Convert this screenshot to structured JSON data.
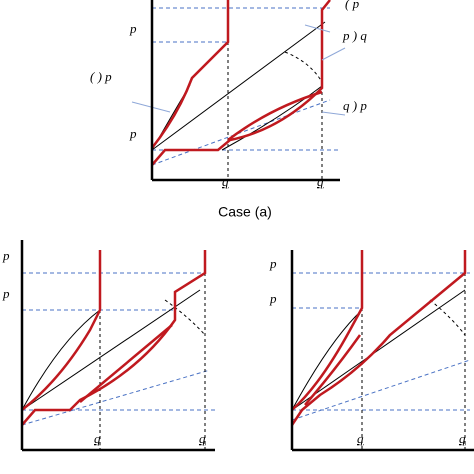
{
  "top": {
    "labels": [
      "p",
      "p",
      "( ) p",
      "( p",
      "p ) q",
      "q ) p"
    ],
    "ticks": [
      "q",
      "q"
    ],
    "caption": "Case (a)"
  },
  "bottom_left": {
    "labels": [
      "p",
      "p"
    ],
    "ticks": [
      "q",
      "q"
    ]
  },
  "bottom_right": {
    "labels": [
      "p",
      "p"
    ],
    "ticks": [
      "q",
      "q"
    ]
  }
}
